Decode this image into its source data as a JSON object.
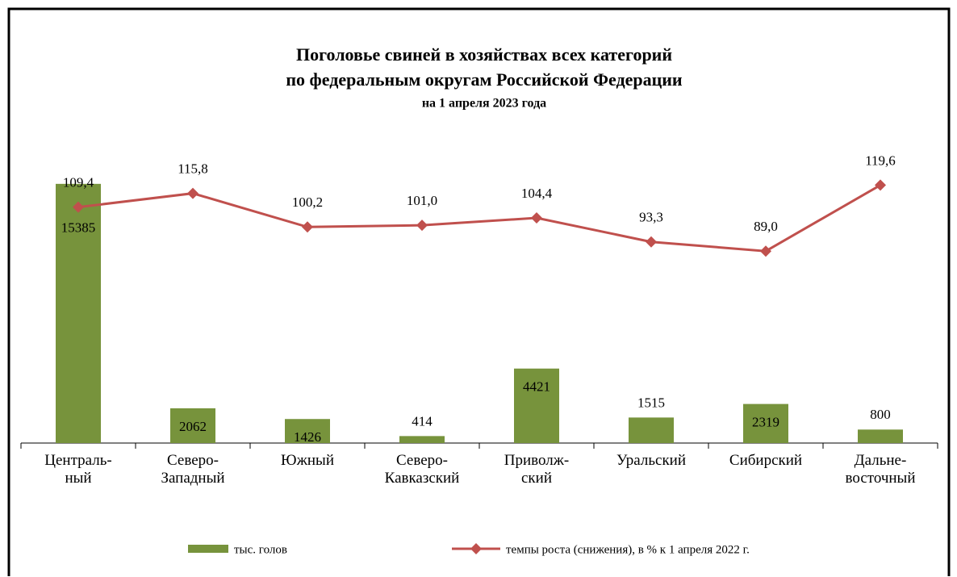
{
  "chart_data": {
    "type": "bar-line",
    "title": "Поголовье  свиней  в хозяйствах  всех категорий",
    "subtitle": "по федеральным  округам  Российской  Федерации",
    "subtitle2": "на 1 апреля 2023 года",
    "categories": [
      "Централь-\nный",
      "Северо-\nЗападный",
      "Южный",
      "Северо-\nКавказский",
      "Приволж-\nский",
      "Уральский",
      "Сибирский",
      "Дальне-\nвосточный"
    ],
    "ylim": [
      0,
      16000
    ],
    "y2lim": [
      0,
      125
    ],
    "series": [
      {
        "name": "тыс. голов",
        "color": "#77933c",
        "values": [
          15385,
          2062,
          1426,
          414,
          4421,
          1515,
          2319,
          800
        ]
      },
      {
        "name": "темпы роста (снижения), в % к 1 апреля 2022 г.",
        "color": "#c0504d",
        "axis": "y2",
        "values": [
          109.4,
          115.8,
          100.2,
          101.0,
          104.4,
          93.3,
          89.0,
          119.6
        ],
        "value_labels": [
          "109,4",
          "115,8",
          "100,2",
          "101,0",
          "104,4",
          "93,3",
          "89,0",
          "119,6"
        ]
      }
    ]
  }
}
